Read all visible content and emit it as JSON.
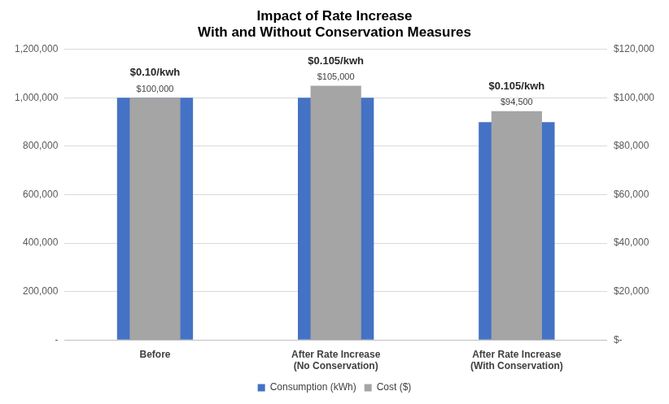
{
  "chart_data": {
    "type": "bar",
    "title": "Impact of Rate Increase\nWith and Without Conservation Measures",
    "categories": [
      "Before",
      "After Rate Increase\n(No Conservation)",
      "After Rate Increase\n(With Conservation)"
    ],
    "annotations": [
      "$0.10/kwh",
      "$0.105/kwh",
      "$0.105/kwh"
    ],
    "series": [
      {
        "name": "Consumption (kWh)",
        "color": "#4472c4",
        "axis": "y",
        "values": [
          1000000,
          1000000,
          900000
        ]
      },
      {
        "name": "Cost ($)",
        "color": "#a5a5a5",
        "axis": "y2",
        "values": [
          100000,
          105000,
          94500
        ],
        "data_labels": true,
        "value_labels": [
          "$100,000",
          "$105,000",
          "$94,500"
        ]
      }
    ],
    "ylim": [
      0,
      1200000
    ],
    "yticks": [
      {
        "value": 0,
        "label": "-"
      },
      {
        "value": 200000,
        "label": "200,000"
      },
      {
        "value": 400000,
        "label": "400,000"
      },
      {
        "value": 600000,
        "label": "600,000"
      },
      {
        "value": 800000,
        "label": "800,000"
      },
      {
        "value": 1000000,
        "label": "1,000,000"
      },
      {
        "value": 1200000,
        "label": "1,200,000"
      }
    ],
    "y2lim": [
      0,
      120000
    ],
    "y2ticks": [
      {
        "value": 0,
        "label": "$-"
      },
      {
        "value": 20000,
        "label": "$20,000"
      },
      {
        "value": 40000,
        "label": "$40,000"
      },
      {
        "value": 60000,
        "label": "$60,000"
      },
      {
        "value": 80000,
        "label": "$80,000"
      },
      {
        "value": 100000,
        "label": "$100,000"
      },
      {
        "value": 120000,
        "label": "$120,000"
      }
    ],
    "grid": true,
    "legend": "bottom"
  }
}
